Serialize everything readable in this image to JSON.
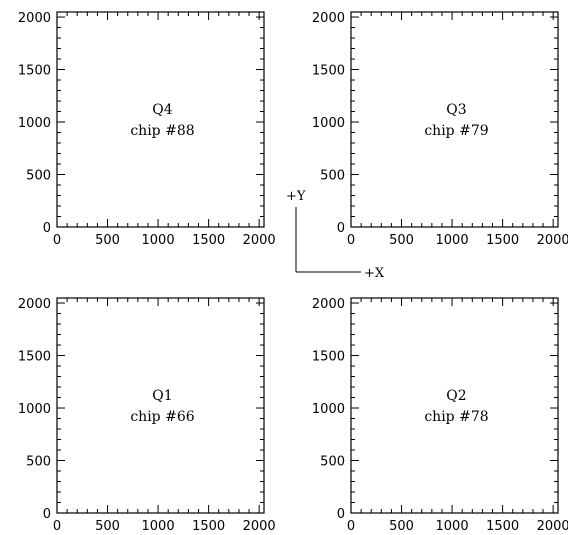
{
  "panels": [
    {
      "quadrant": "Q4",
      "chip": "chip #88"
    },
    {
      "quadrant": "Q3",
      "chip": "chip #79"
    },
    {
      "quadrant": "Q1",
      "chip": "chip #66"
    },
    {
      "quadrant": "Q2",
      "chip": "chip #78"
    }
  ],
  "axis_ticks": {
    "x": [
      "0",
      "500",
      "1000",
      "1500",
      "2000"
    ],
    "y": [
      "0",
      "500",
      "1000",
      "1500",
      "2000"
    ]
  },
  "axis_range": {
    "min": 0,
    "max": 2048
  },
  "orientation": {
    "y_label": "+Y",
    "x_label": "+X"
  }
}
